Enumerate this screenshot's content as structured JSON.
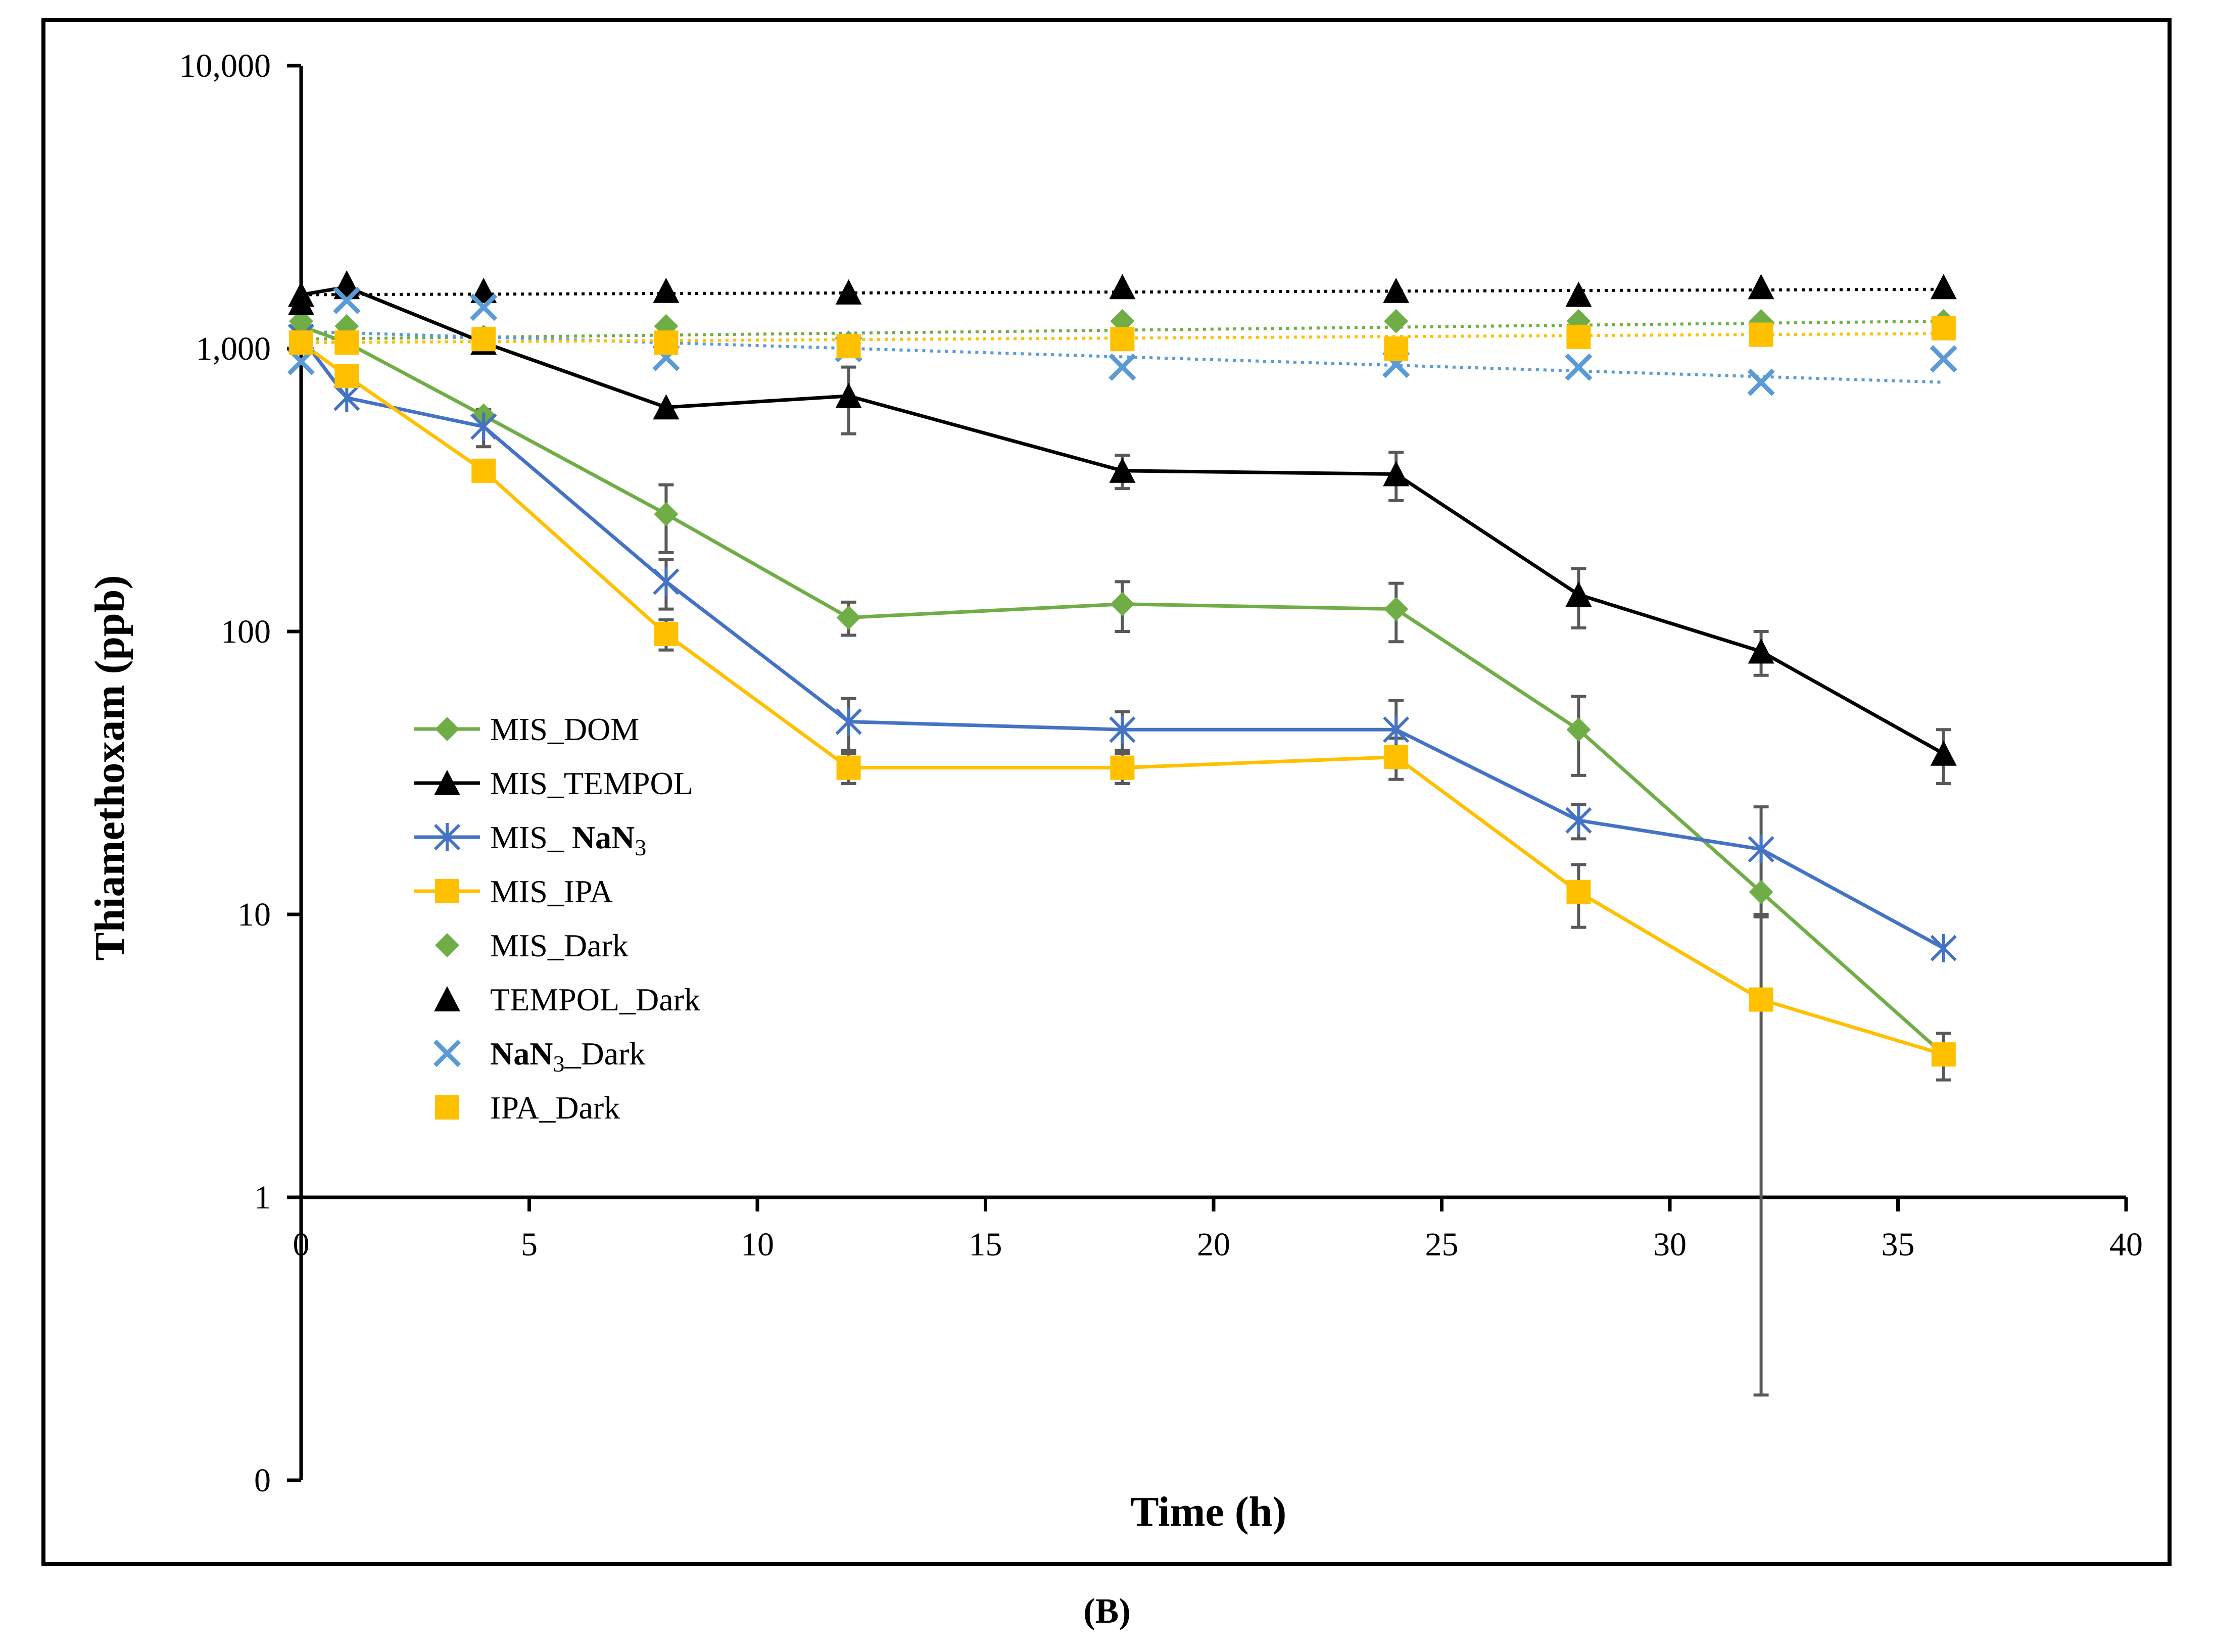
{
  "caption": {
    "open": "(",
    "letter": "B",
    "close": ")"
  },
  "chart_data": {
    "type": "line",
    "title": "",
    "xlabel": "Time (h)",
    "ylabel": "Thiamethoxam (ppb)",
    "xscale": "linear",
    "yscale": "log",
    "xlim": [
      0,
      40
    ],
    "ylim": [
      0.1,
      10000
    ],
    "xticks": [
      0,
      5,
      10,
      15,
      20,
      25,
      30,
      35,
      40
    ],
    "xtick_labels": [
      "0",
      "5",
      "10",
      "15",
      "20",
      "25",
      "30",
      "35",
      "40"
    ],
    "yticks": [
      0.1,
      1,
      10,
      100,
      1000,
      10000
    ],
    "ytick_labels": [
      "0",
      "1",
      "10",
      "100",
      "1,000",
      "10,000"
    ],
    "grid": false,
    "legend_position": "center-left",
    "series": [
      {
        "name": "MIS_DOM",
        "color": "#70AD47",
        "marker": "diamond",
        "line": "solid",
        "x": [
          0,
          1,
          4,
          8,
          12,
          18,
          24,
          28,
          32,
          36
        ],
        "y": [
          1200,
          1050,
          580,
          260,
          112,
          125,
          120,
          45,
          12,
          3.2
        ],
        "err": [
          null,
          null,
          null,
          70,
          15,
          25,
          28,
          14,
          null,
          null
        ]
      },
      {
        "name": "MIS_TEMPOL",
        "color": "#000000",
        "marker": "triangle",
        "line": "solid",
        "x": [
          0,
          1,
          4,
          8,
          12,
          18,
          24,
          28,
          32,
          36
        ],
        "y": [
          1550,
          1650,
          1050,
          620,
          680,
          370,
          360,
          135,
          85,
          37
        ],
        "err": [
          null,
          null,
          null,
          null,
          180,
          50,
          70,
          32,
          15,
          8
        ]
      },
      {
        "name": "MIS_NaN3",
        "label_prefix": "MIS_ ",
        "label_sub_base": "NaN",
        "label_sub": "3",
        "color": "#4472C4",
        "marker": "asterisk",
        "line": "solid",
        "x": [
          0,
          1,
          4,
          8,
          12,
          18,
          24,
          28,
          32,
          36
        ],
        "y": [
          1100,
          670,
          530,
          150,
          48,
          45,
          45,
          21.5,
          17,
          7.6
        ],
        "err": [
          null,
          null,
          80,
          30,
          10,
          7,
          12,
          3,
          7,
          null
        ]
      },
      {
        "name": "MIS_IPA",
        "color": "#FFC000",
        "marker": "square",
        "line": "solid",
        "x": [
          0,
          1,
          4,
          8,
          12,
          18,
          24,
          28,
          32,
          36
        ],
        "y": [
          1050,
          800,
          370,
          98,
          33,
          33,
          36,
          12,
          5,
          3.2
        ],
        "err": [
          null,
          null,
          null,
          12,
          4,
          4,
          6,
          3,
          4.8,
          0.6
        ]
      },
      {
        "name": "MIS_Dark",
        "color": "#70AD47",
        "marker": "diamond",
        "line": "trend",
        "x": [
          0,
          1,
          4,
          8,
          12,
          18,
          24,
          28,
          32,
          36
        ],
        "y": [
          1250,
          1200,
          1100,
          1200,
          1050,
          1250,
          1250,
          1250,
          1250,
          1250
        ],
        "err": [],
        "trend": [
          1080,
          1250
        ]
      },
      {
        "name": "TEMPOL_Dark",
        "color": "#000000",
        "marker": "triangle",
        "line": "trend",
        "x": [
          0,
          1,
          4,
          8,
          12,
          18,
          24,
          28,
          32,
          36
        ],
        "y": [
          1450,
          1700,
          1600,
          1600,
          1580,
          1650,
          1600,
          1550,
          1650,
          1650
        ],
        "err": [],
        "trend": [
          1550,
          1620
        ]
      },
      {
        "name": "NaN3_Dark",
        "label_prefix": "",
        "label_sub_base": "NaN",
        "label_sub": "3",
        "label_suffix": "_Dark",
        "color": "#5B9BD5",
        "marker": "x",
        "line": "trend",
        "x": [
          0,
          1,
          4,
          8,
          12,
          18,
          24,
          28,
          32,
          36
        ],
        "y": [
          900,
          1480,
          1400,
          930,
          1000,
          860,
          880,
          860,
          760,
          920
        ],
        "err": [],
        "trend": [
          1150,
          760
        ]
      },
      {
        "name": "IPA_Dark",
        "color": "#FFC000",
        "marker": "square",
        "line": "trend",
        "x": [
          0,
          1,
          4,
          8,
          12,
          18,
          24,
          28,
          32,
          36
        ],
        "y": [
          1050,
          1050,
          1080,
          1050,
          1020,
          1080,
          1000,
          1100,
          1120,
          1180
        ],
        "err": [],
        "trend": [
          1050,
          1130
        ]
      }
    ]
  }
}
